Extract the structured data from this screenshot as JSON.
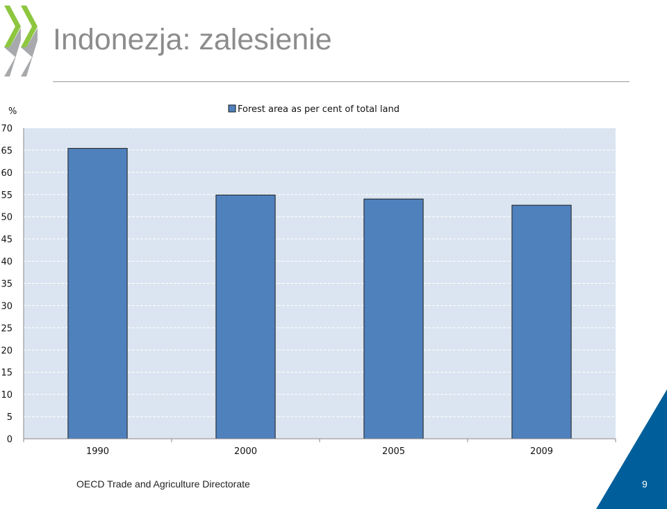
{
  "slide": {
    "title": "Indonezja: zalesienie",
    "footer": "OECD Trade and Agriculture Directorate",
    "page_number": "9"
  },
  "colors": {
    "bar": "#4f81bd",
    "plot_background": "#dbe5f1",
    "logo_green": "#8dc63f",
    "logo_grey": "#a7a9ac",
    "corner_blue": "#005f9a",
    "title": "#8c8c8c"
  },
  "icons": {
    "logo": "oecd-chevron-logo",
    "corner": "blue-triangle-corner"
  },
  "chart_data": {
    "type": "bar",
    "categories": [
      "1990",
      "2000",
      "2005",
      "2009"
    ],
    "series": [
      {
        "name": "Forest area as per cent of total land",
        "values": [
          65.4,
          54.9,
          54.0,
          52.6
        ]
      }
    ],
    "ylabel": "%",
    "xlabel": "",
    "ylim": [
      0,
      70
    ],
    "yticks": [
      0,
      5,
      10,
      15,
      20,
      25,
      30,
      35,
      40,
      45,
      50,
      55,
      60,
      65,
      70
    ],
    "grid": true,
    "legend": "top-center"
  }
}
